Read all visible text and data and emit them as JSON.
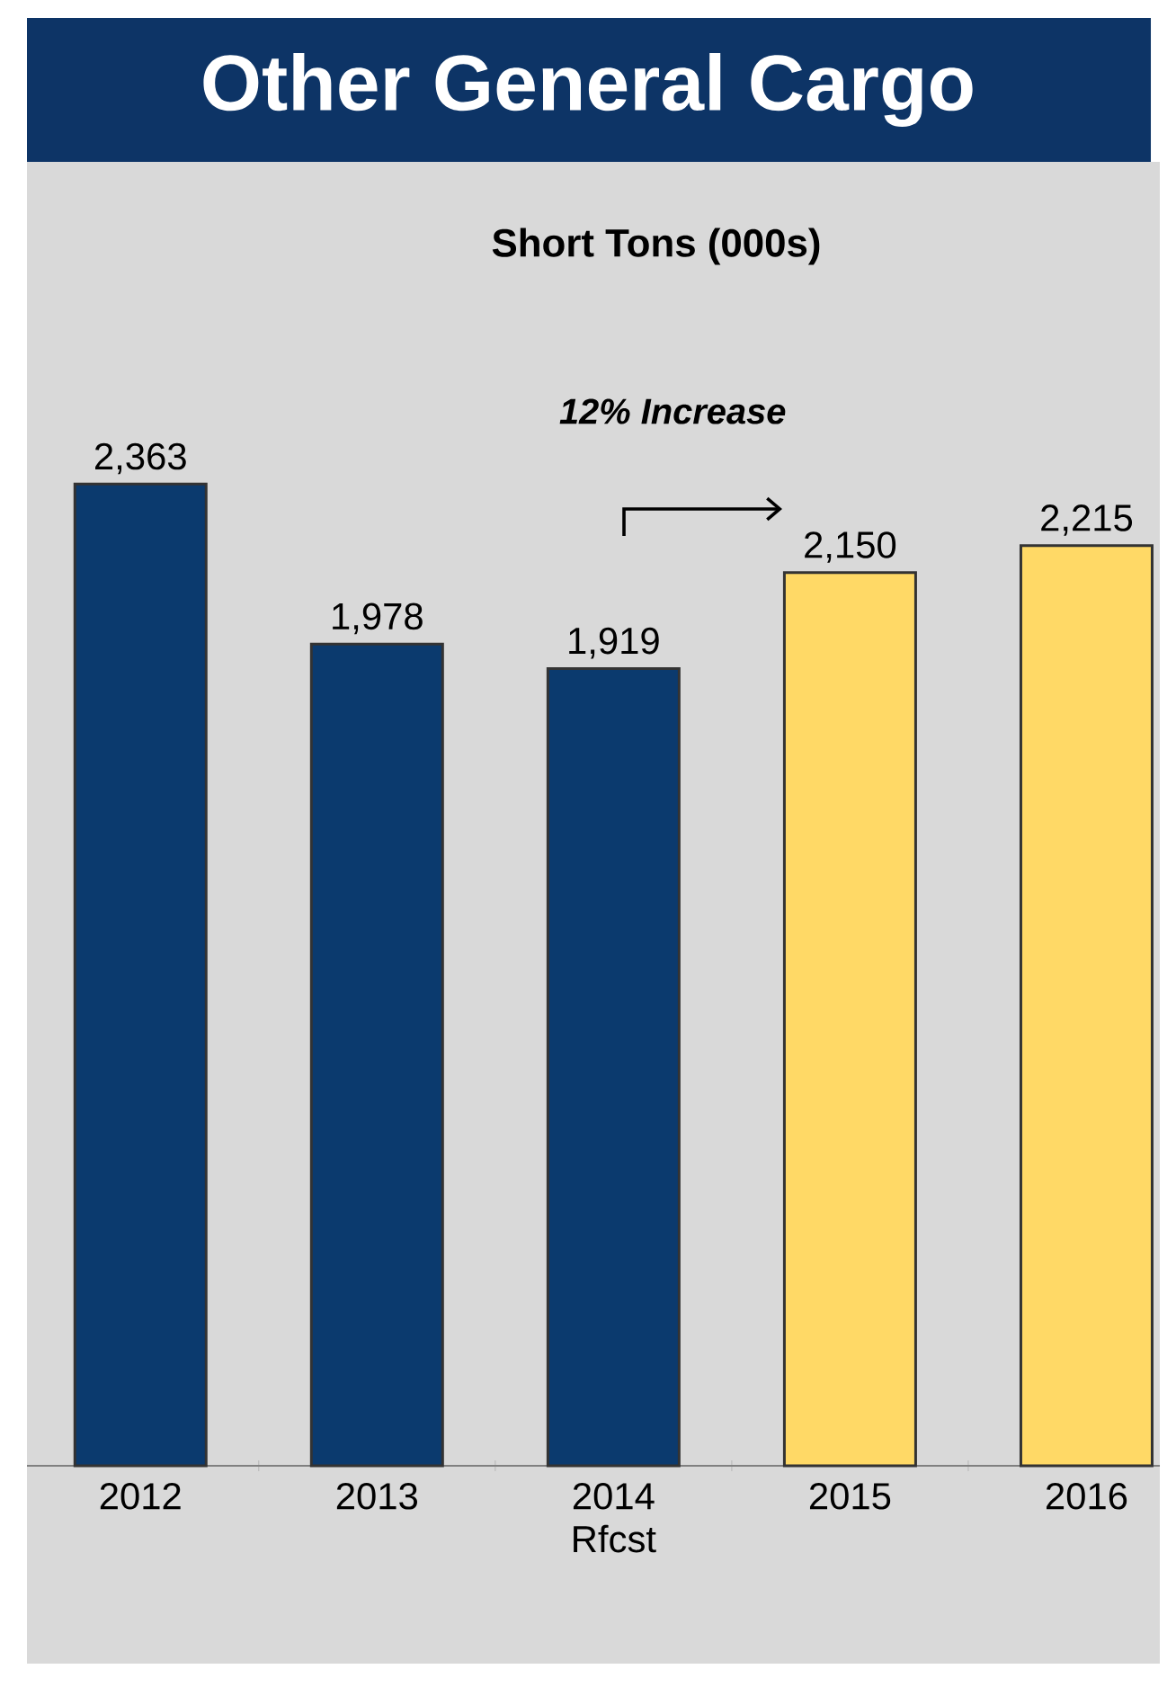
{
  "chart_data": {
    "type": "bar",
    "title": "Other General Cargo",
    "subtitle": "Short Tons (000s)",
    "categories": [
      "2012",
      "2013",
      "2014 Rfcst",
      "2015",
      "2016"
    ],
    "values": [
      2363,
      1978,
      1919,
      2150,
      2215
    ],
    "value_labels": [
      "2,363",
      "1,978",
      "1,919",
      "2,150",
      "2,215"
    ],
    "colors": [
      "#0b3a6e",
      "#0b3a6e",
      "#0b3a6e",
      "#ffd966",
      "#ffd966"
    ],
    "annotations": [
      "12% Increase"
    ]
  }
}
